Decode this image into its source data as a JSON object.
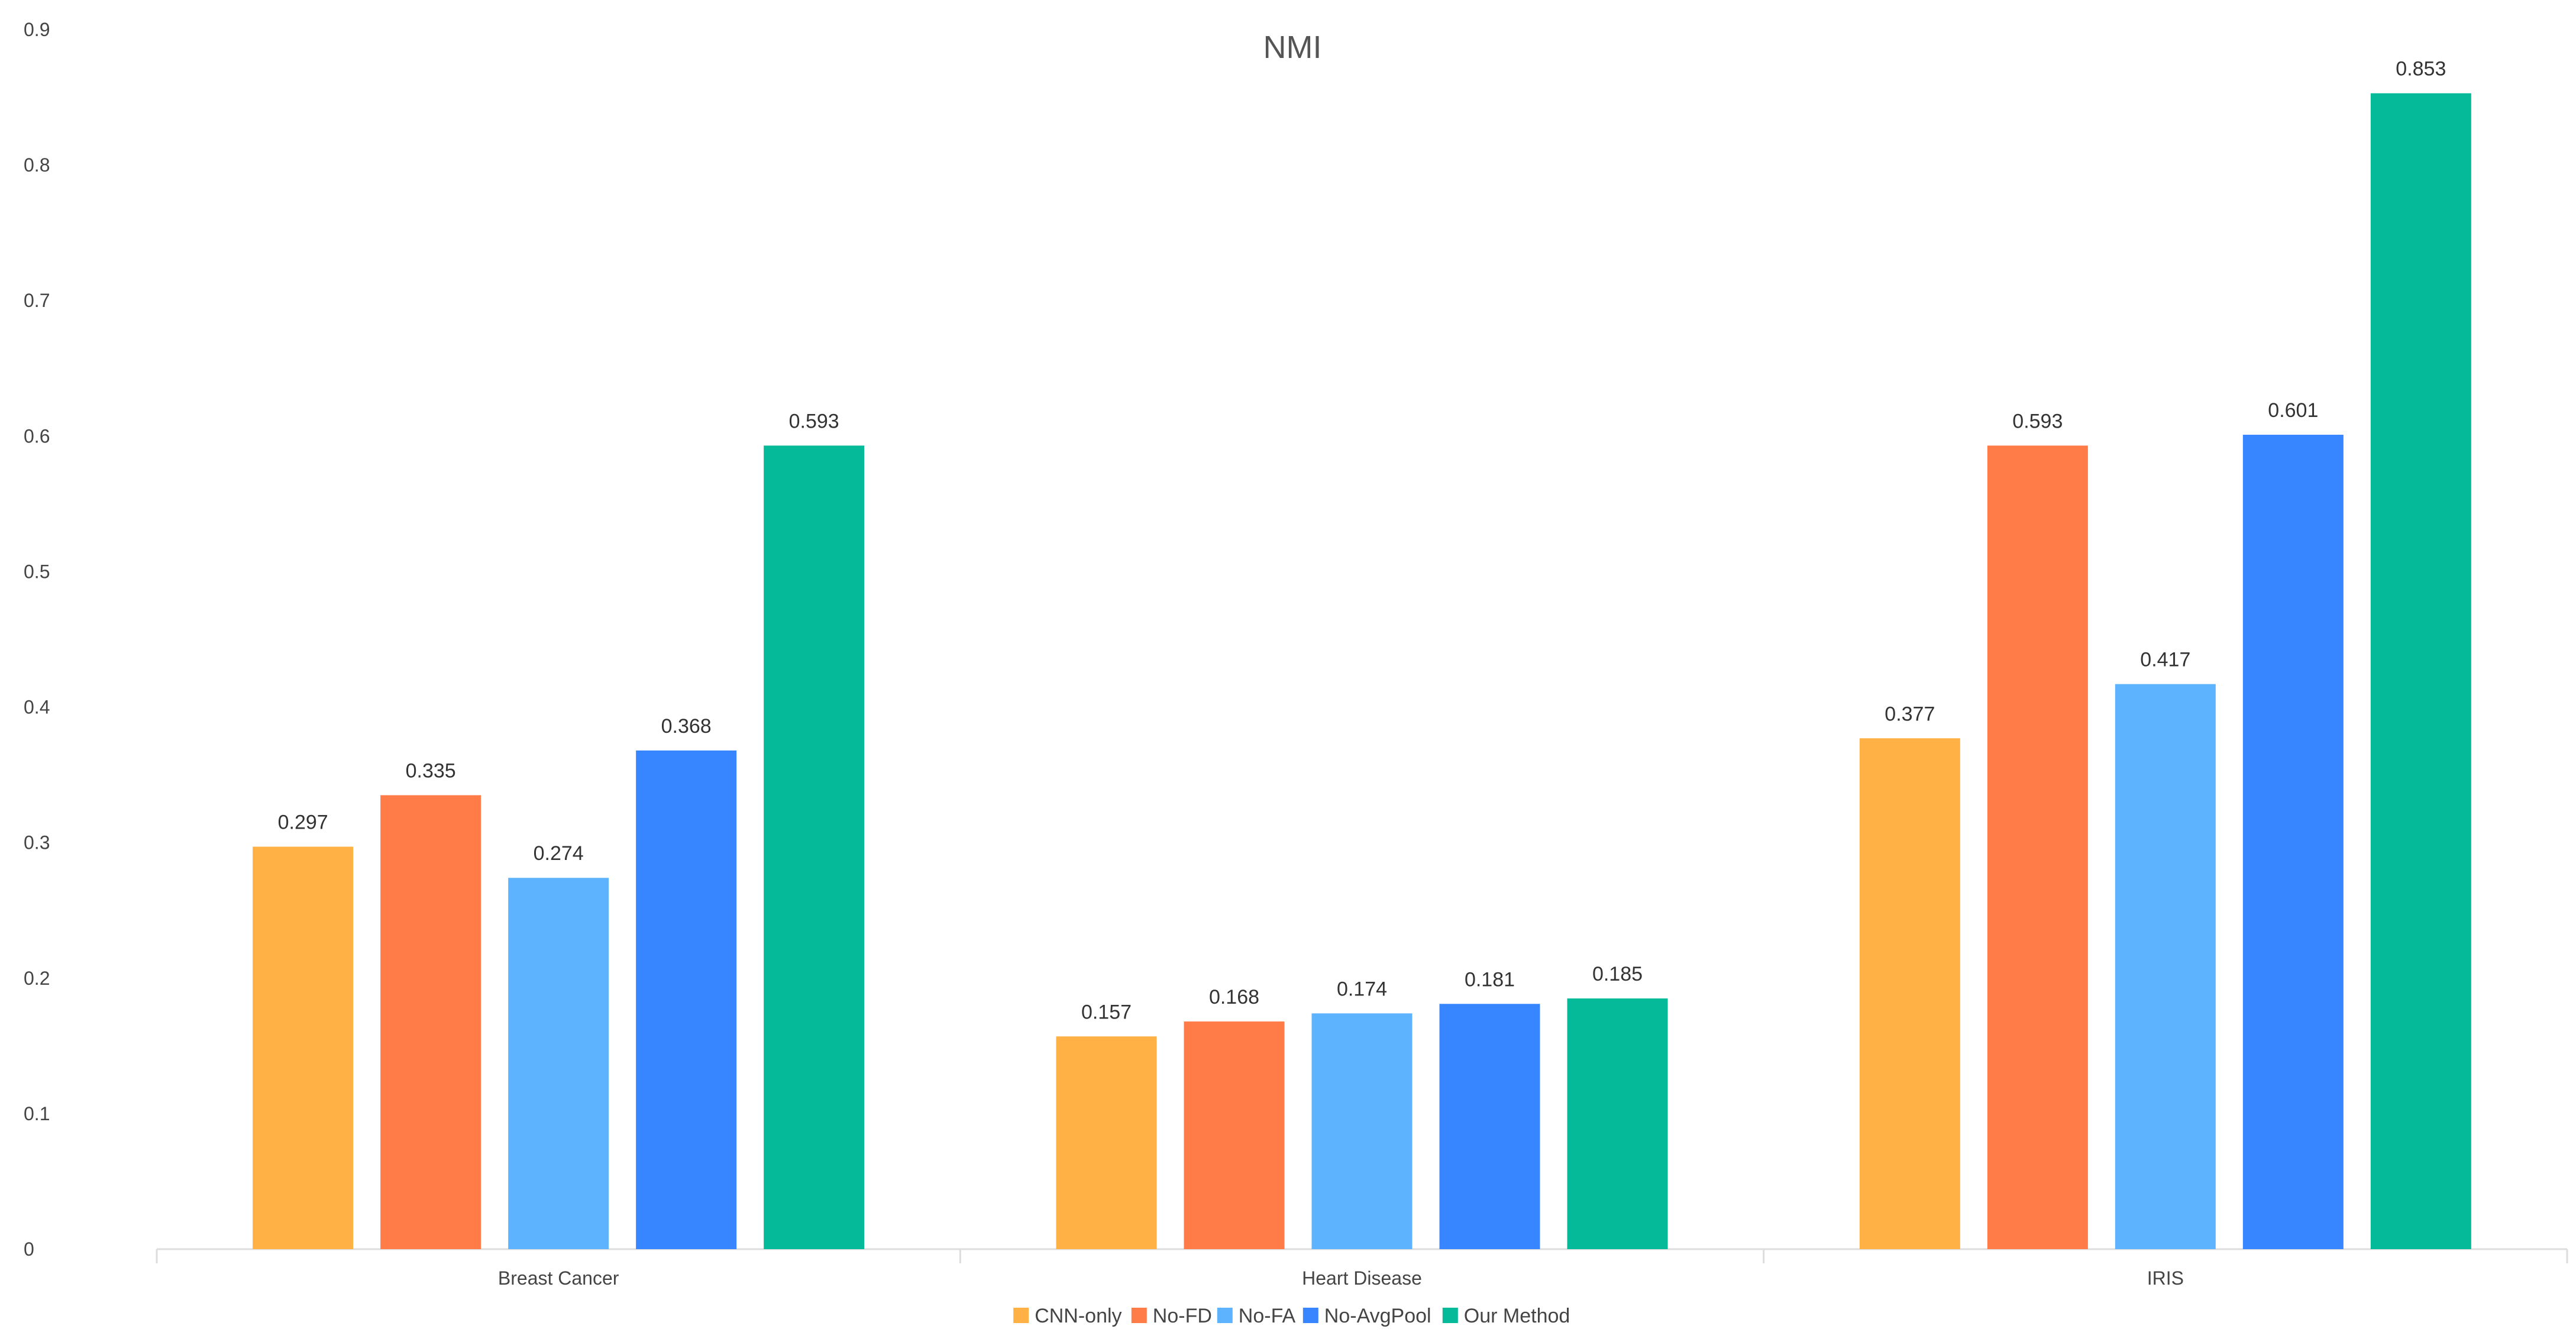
{
  "chart_data": {
    "type": "bar",
    "title": "NMI",
    "xlabel": "",
    "ylabel": "",
    "ylim": [
      0,
      0.9
    ],
    "yticks": [
      "0",
      "0.1",
      "0.2",
      "0.3",
      "0.4",
      "0.5",
      "0.6",
      "0.7",
      "0.8",
      "0.9"
    ],
    "grid": false,
    "legend_position": "bottom",
    "categories": [
      "Breast Cancer",
      "Heart Disease",
      "IRIS"
    ],
    "series": [
      {
        "name": "CNN-only",
        "color": "#FFB145",
        "values": [
          0.297,
          0.157,
          0.377
        ],
        "labels": [
          "0.297",
          "0.157",
          "0.377"
        ]
      },
      {
        "name": "No-FD",
        "color": "#FF7B48",
        "values": [
          0.335,
          0.168,
          0.593
        ],
        "labels": [
          "0.335",
          "0.168",
          "0.593"
        ]
      },
      {
        "name": "No-FA",
        "color": "#5EB3FF",
        "values": [
          0.274,
          0.174,
          0.417
        ],
        "labels": [
          "0.274",
          "0.174",
          "0.417"
        ]
      },
      {
        "name": "No-AvgPool",
        "color": "#3785FF",
        "values": [
          0.368,
          0.181,
          0.601
        ],
        "labels": [
          "0.368",
          "0.181",
          "0.601"
        ]
      },
      {
        "name": "Our Method",
        "color": "#05BA98",
        "values": [
          0.593,
          0.185,
          0.853
        ],
        "labels": [
          "0.593",
          "0.185",
          "0.853"
        ]
      }
    ]
  }
}
